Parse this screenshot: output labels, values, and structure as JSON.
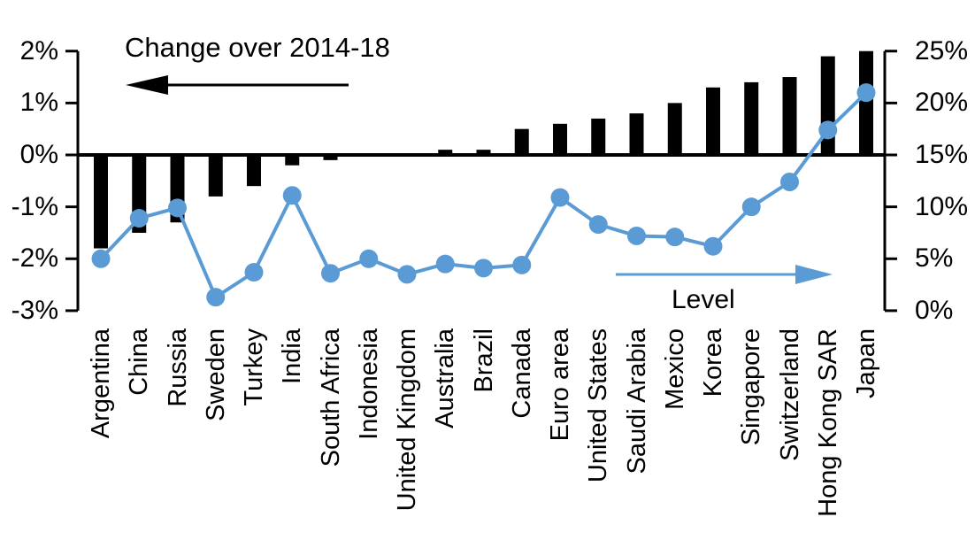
{
  "chart_data": {
    "type": "bar",
    "subtype": "combo-bar-line-dual-axis",
    "title": "",
    "categories": [
      "Argentina",
      "China",
      "Russia",
      "Sweden",
      "Turkey",
      "India",
      "South Africa",
      "Indonesia",
      "United Kingdom",
      "Australia",
      "Brazil",
      "Canada",
      "Euro area",
      "United States",
      "Saudi Arabia",
      "Mexico",
      "Korea",
      "Singapore",
      "Switzerland",
      "Hong Kong SAR",
      "Japan"
    ],
    "series": [
      {
        "name": "Change over 2014-18",
        "type": "bar",
        "axis": "left",
        "color": "#000000",
        "unit": "%",
        "values": [
          -1.8,
          -1.5,
          -1.3,
          -0.8,
          -0.6,
          -0.2,
          -0.1,
          0,
          0,
          0.1,
          0.1,
          0.5,
          0.6,
          0.7,
          0.8,
          1.0,
          1.3,
          1.4,
          1.5,
          1.9,
          2.0
        ]
      },
      {
        "name": "Level",
        "type": "line",
        "axis": "right",
        "color": "#5B9BD5",
        "unit": "%",
        "values": [
          5.0,
          8.9,
          9.9,
          1.3,
          3.7,
          11.1,
          3.6,
          5.0,
          3.5,
          4.5,
          4.1,
          4.4,
          10.9,
          8.3,
          7.2,
          7.1,
          6.2,
          10.0,
          12.4,
          17.4,
          21.0
        ]
      }
    ],
    "left_axis": {
      "min": -3,
      "max": 2,
      "tick_step": 1,
      "tick_labels": [
        "2%",
        "1%",
        "0%",
        "-1%",
        "-2%",
        "-3%"
      ]
    },
    "right_axis": {
      "min": 0,
      "max": 25,
      "tick_step": 5,
      "tick_labels": [
        "25%",
        "20%",
        "15%",
        "10%",
        "5%",
        "0%"
      ]
    },
    "annotations": {
      "bar_label": {
        "text": "Change over 2014-18",
        "arrow_direction": "left",
        "arrow_color": "#000000"
      },
      "line_label": {
        "text": "Level",
        "arrow_direction": "right",
        "arrow_color": "#5B9BD5"
      }
    },
    "grid": false,
    "legend_position": "none",
    "background": "#ffffff"
  }
}
